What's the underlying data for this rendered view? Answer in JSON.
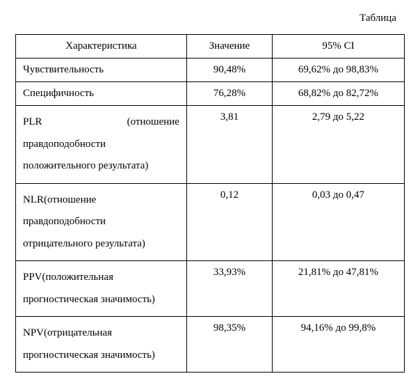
{
  "title": "Таблица",
  "headers": {
    "characteristic": "Характеристика",
    "value": "Значение",
    "ci": "95% CI"
  },
  "rows": {
    "r0": {
      "char": "Чувствительность",
      "val": "90,48%",
      "ci": "69,62% до 98,83%"
    },
    "r1": {
      "char": "Специфичность",
      "val": "76,28%",
      "ci": "68,82% до 82,72%"
    },
    "r2": {
      "char_line1a": "PLR",
      "char_line1b": "(отношение",
      "char_line2": "правдоподобности",
      "char_line3": "положительного результата)",
      "val": "3,81",
      "ci": "2,79 до 5,22"
    },
    "r3": {
      "char_line1": "NLR(отношение",
      "char_line2": "правдоподобности",
      "char_line3": "отрицательного результата)",
      "val": "0,12",
      "ci": "0,03 до 0,47"
    },
    "r4": {
      "char_line1": "PPV(положительная",
      "char_line2": "прогностическая значимость)",
      "val": "33,93%",
      "ci": "21,81% до 47,81%"
    },
    "r5": {
      "char_line1": "NPV(отрицательная",
      "char_line2": "прогностическая значимость)",
      "val": "98,35%",
      "ci": "94,16% до 99,8%"
    }
  }
}
